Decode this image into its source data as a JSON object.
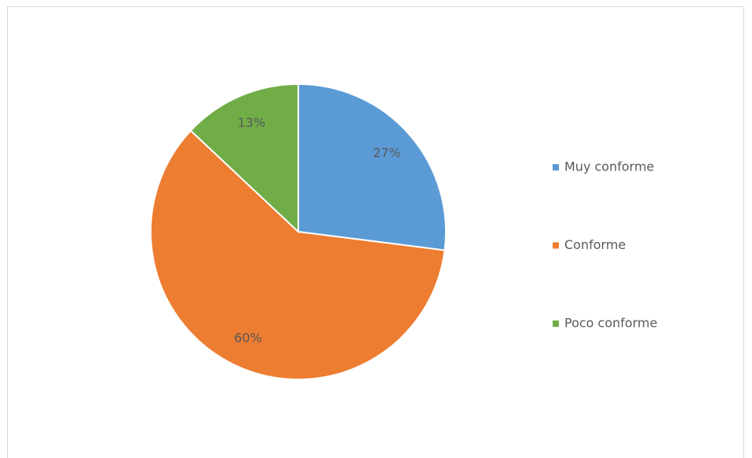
{
  "chart_data": {
    "type": "pie",
    "categories": [
      "Muy conforme",
      "Conforme",
      "Poco conforme"
    ],
    "values": [
      27,
      60,
      13
    ],
    "value_labels": [
      "27%",
      "60%",
      "13%"
    ],
    "colors": [
      "#5b9bd5",
      "#ed7d31",
      "#70ad47"
    ],
    "legend": "right"
  }
}
